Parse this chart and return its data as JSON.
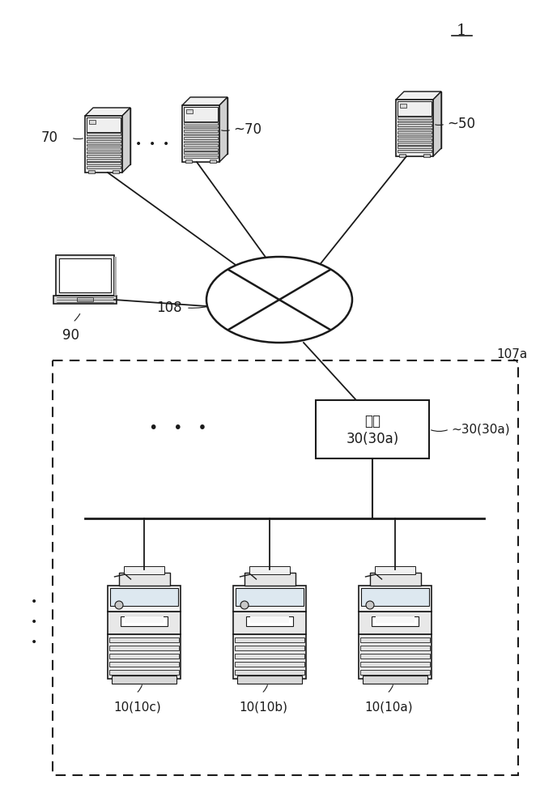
{
  "title_label": "1",
  "network_label": "108",
  "gateway_text_line1": "网关",
  "gateway_text_line2": "30(30a)",
  "gateway_ref": "~30(30a)",
  "dashed_box_label": "107a",
  "label_70_left": "70",
  "label_70_right": "~70",
  "label_50": "~50",
  "laptop_label": "90",
  "printer_labels": [
    "10(10c)",
    "10(10b)",
    "10(10a)"
  ],
  "bg_color": "#ffffff",
  "line_color": "#1a1a1a"
}
